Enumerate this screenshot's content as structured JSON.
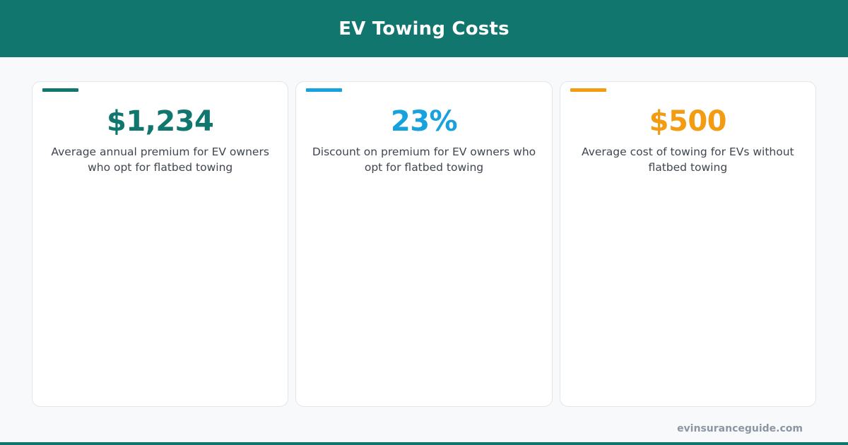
{
  "header": {
    "title": "EV Towing Costs"
  },
  "colors": {
    "header_bg": "#10766e",
    "teal": "#10766e",
    "blue": "#17a2dd",
    "orange": "#f39c12",
    "description_text": "#3f4650",
    "footer_text": "#8c96a3"
  },
  "cards": [
    {
      "value": "$1,234",
      "description": "Average annual premium for EV owners who opt for flatbed towing",
      "accent_color": "#10766e"
    },
    {
      "value": "23%",
      "description": "Discount on premium for EV owners who opt for flatbed towing",
      "accent_color": "#17a2dd"
    },
    {
      "value": "$500",
      "description": "Average cost of towing for EVs without flatbed towing",
      "accent_color": "#f39c12"
    }
  ],
  "footer": {
    "site": "evinsuranceguide.com"
  }
}
